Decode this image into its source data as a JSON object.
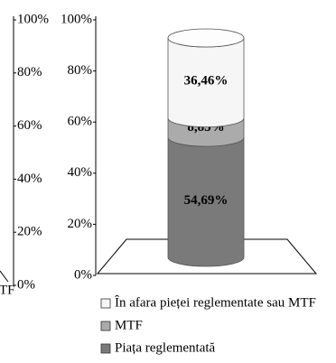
{
  "chart_data": [
    {
      "type": "axis-fragment",
      "categories": [
        "TF"
      ],
      "ylim": [
        0,
        100
      ],
      "yticks": [
        {
          "value": 0,
          "label": "0%"
        },
        {
          "value": 20,
          "label": "20%"
        },
        {
          "value": 40,
          "label": "40%"
        },
        {
          "value": 60,
          "label": "60%"
        },
        {
          "value": 80,
          "label": "80%"
        },
        {
          "value": 100,
          "label": "100%"
        }
      ]
    },
    {
      "type": "stacked-cylinder",
      "ylim": [
        0,
        100
      ],
      "yticks": [
        {
          "value": 0,
          "label": "0%"
        },
        {
          "value": 20,
          "label": "20%"
        },
        {
          "value": 40,
          "label": "40%"
        },
        {
          "value": 60,
          "label": "60%"
        },
        {
          "value": 80,
          "label": "80%"
        },
        {
          "value": 100,
          "label": "100%"
        }
      ],
      "series": [
        {
          "name": "Piața reglementată",
          "color": "#7a7a7a",
          "values": [
            54.69
          ],
          "value_labels": [
            "54,69%"
          ]
        },
        {
          "name": "MTF",
          "color": "#ababab",
          "values": [
            8.85
          ],
          "value_labels": [
            "8,85%"
          ]
        },
        {
          "name": "În afara pieței reglementate sau MTF",
          "color": "#f6f6f6",
          "values": [
            36.46
          ],
          "value_labels": [
            "36,46%"
          ]
        }
      ]
    }
  ]
}
